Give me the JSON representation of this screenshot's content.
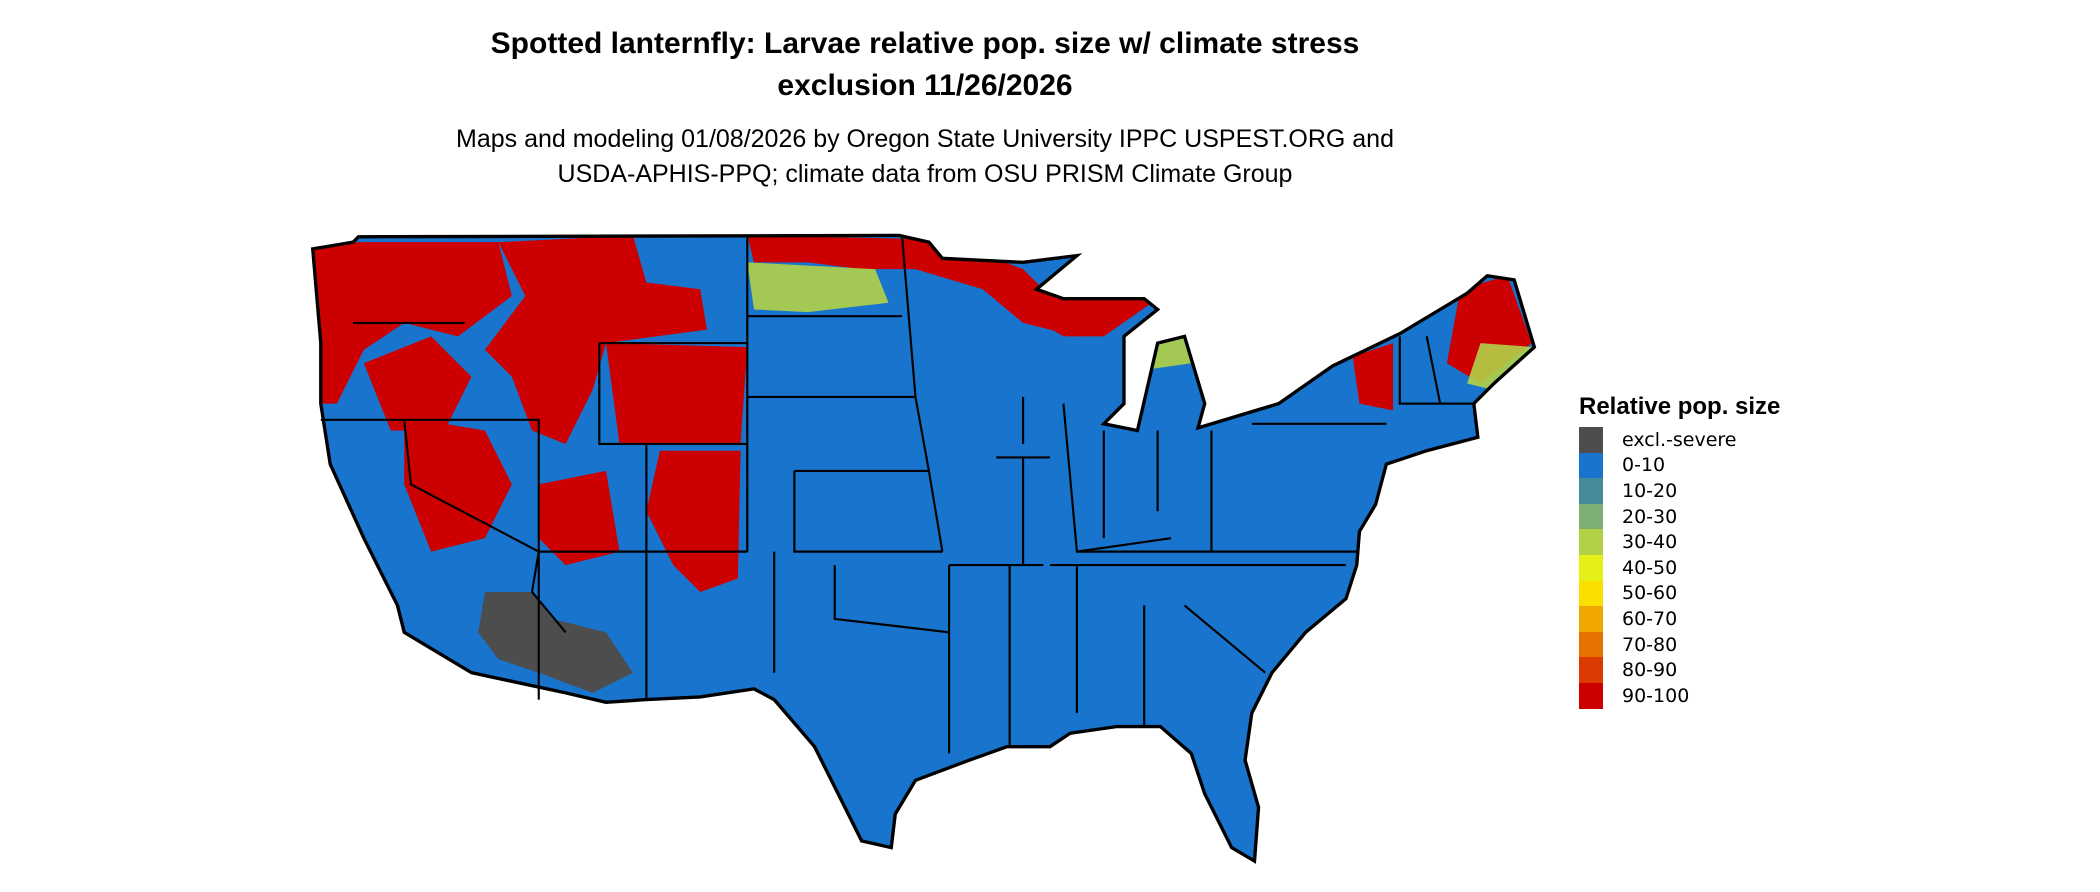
{
  "title_line1": "Spotted lanternfly: Larvae relative pop. size w/ climate stress",
  "title_line2": "exclusion 11/26/2026",
  "subtitle_line1": "Maps and modeling 01/08/2026 by Oregon State University IPPC USPEST.ORG and",
  "subtitle_line2": "USDA-APHIS-PPQ; climate data from OSU PRISM Climate Group",
  "legend": {
    "title": "Relative pop. size",
    "items": [
      {
        "label": "excl.-severe",
        "color": "#4d4d4d"
      },
      {
        "label": "0-10",
        "color": "#1874cd"
      },
      {
        "label": "10-20",
        "color": "#458b9c"
      },
      {
        "label": "20-30",
        "color": "#7cb072"
      },
      {
        "label": "30-40",
        "color": "#b2d147"
      },
      {
        "label": "40-50",
        "color": "#e5f016"
      },
      {
        "label": "50-60",
        "color": "#fae000"
      },
      {
        "label": "60-70",
        "color": "#f0a800"
      },
      {
        "label": "70-80",
        "color": "#e57200"
      },
      {
        "label": "80-90",
        "color": "#db3a00"
      },
      {
        "label": "90-100",
        "color": "#cc0000"
      }
    ]
  }
}
